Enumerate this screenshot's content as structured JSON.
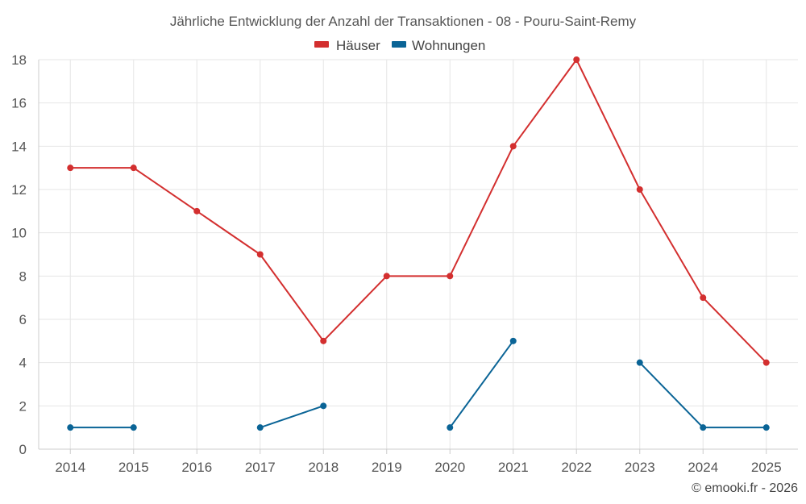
{
  "chart_data": {
    "type": "line",
    "title": "Jährliche Entwicklung der Anzahl der Transaktionen - 08 - Pouru-Saint-Remy",
    "categories": [
      "2014",
      "2015",
      "2016",
      "2017",
      "2018",
      "2019",
      "2020",
      "2021",
      "2022",
      "2023",
      "2024",
      "2025"
    ],
    "series": [
      {
        "name": "Häuser",
        "color": "#d32f2f",
        "values": [
          13,
          13,
          11,
          9,
          5,
          8,
          8,
          14,
          18,
          12,
          7,
          4
        ]
      },
      {
        "name": "Wohnungen",
        "color": "#0a6496",
        "values": [
          1,
          1,
          null,
          1,
          2,
          null,
          1,
          5,
          null,
          4,
          1,
          1
        ]
      }
    ],
    "ylim": [
      0,
      18
    ],
    "yticks": [
      0,
      2,
      4,
      6,
      8,
      10,
      12,
      14,
      16,
      18
    ],
    "xlabel": "",
    "ylabel": "",
    "legend": "top-center",
    "grid": true
  },
  "credit": "© emooki.fr - 2026"
}
